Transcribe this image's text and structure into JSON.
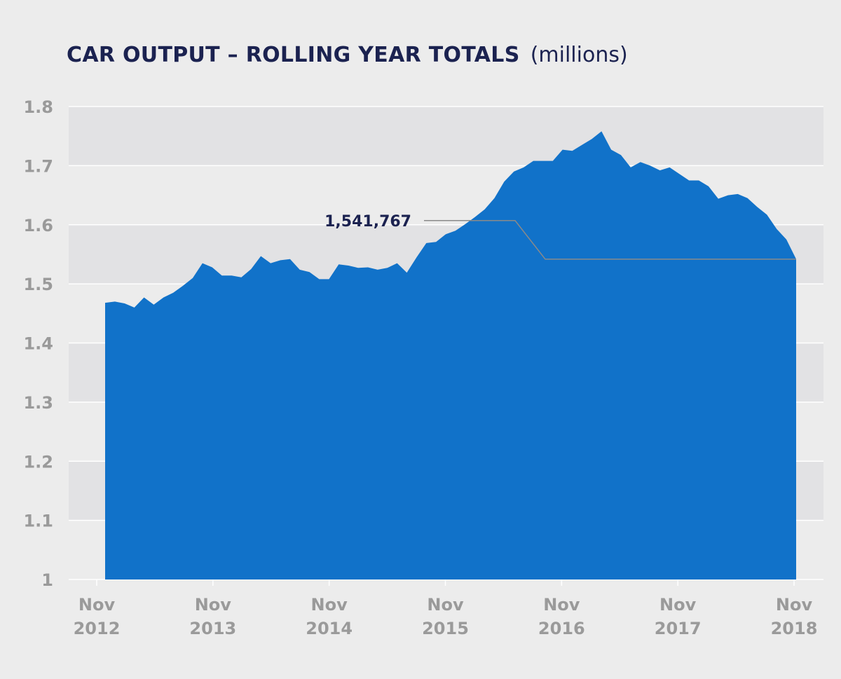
{
  "chart_data": {
    "type": "area",
    "title": "CAR OUTPUT – ROLLING YEAR TOTALS",
    "title_unit": "(millions)",
    "ylim": [
      1,
      1.8
    ],
    "y_ticks": [
      "1",
      "1.1",
      "1.2",
      "1.3",
      "1.4",
      "1.5",
      "1.6",
      "1.7",
      "1.8"
    ],
    "x_ticks": [
      {
        "line1": "Nov",
        "line2": "2012"
      },
      {
        "line1": "Nov",
        "line2": "2013"
      },
      {
        "line1": "Nov",
        "line2": "2014"
      },
      {
        "line1": "Nov",
        "line2": "2015"
      },
      {
        "line1": "Nov",
        "line2": "2016"
      },
      {
        "line1": "Nov",
        "line2": "2017"
      },
      {
        "line1": "Nov",
        "line2": "2018"
      }
    ],
    "x_start": "2012-11",
    "grid": true,
    "series": [
      {
        "color": "#1172c9",
        "values": [
          1.468,
          1.47,
          1.467,
          1.46,
          1.477,
          1.465,
          1.477,
          1.485,
          1.497,
          1.51,
          1.535,
          1.528,
          1.514,
          1.514,
          1.511,
          1.525,
          1.547,
          1.535,
          1.54,
          1.542,
          1.524,
          1.52,
          1.508,
          1.508,
          1.533,
          1.531,
          1.527,
          1.528,
          1.524,
          1.527,
          1.535,
          1.519,
          1.545,
          1.569,
          1.571,
          1.584,
          1.59,
          1.601,
          1.613,
          1.626,
          1.645,
          1.673,
          1.69,
          1.697,
          1.708,
          1.708,
          1.708,
          1.727,
          1.725,
          1.735,
          1.745,
          1.758,
          1.727,
          1.718,
          1.697,
          1.706,
          1.7,
          1.692,
          1.697,
          1.686,
          1.675,
          1.675,
          1.665,
          1.644,
          1.65,
          1.652,
          1.645,
          1.63,
          1.617,
          1.593,
          1.575,
          1.542
        ]
      }
    ],
    "annotation": {
      "label": "1,541,767",
      "value": 1.541767
    }
  }
}
